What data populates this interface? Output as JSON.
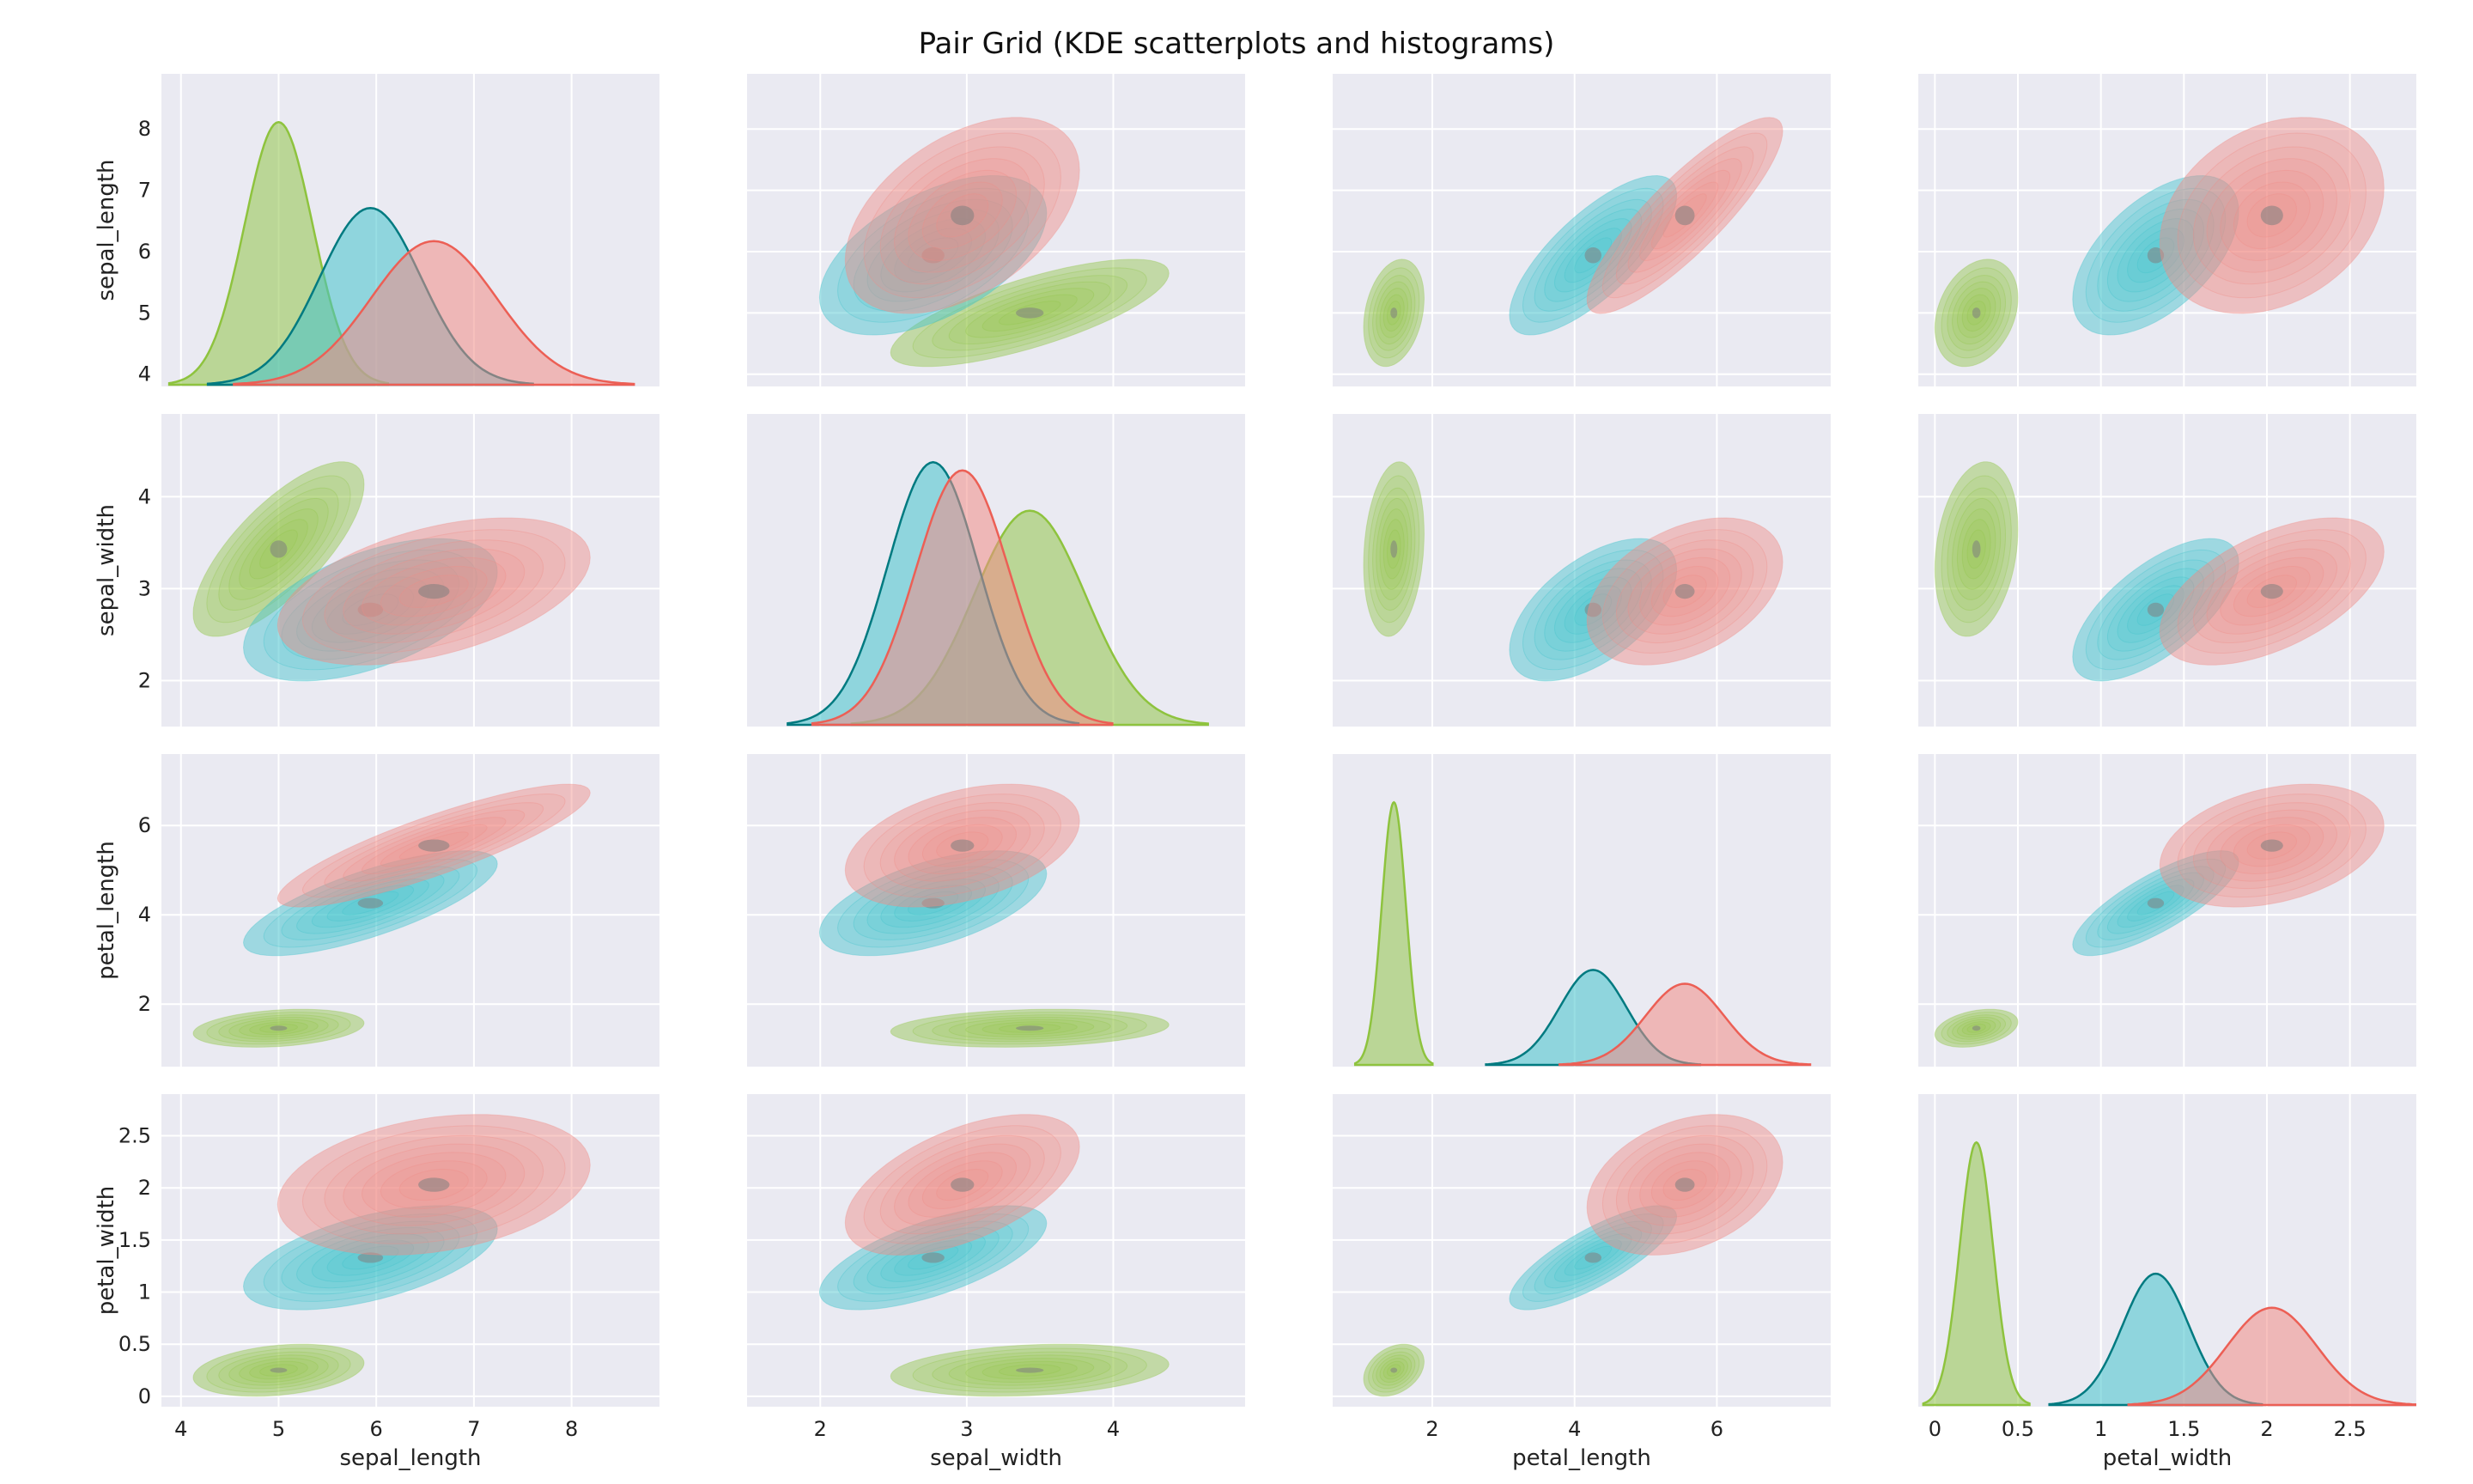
{
  "chart_data": {
    "type": "pair-grid-kde",
    "title": "Pair Grid (KDE scatterplots and histograms)",
    "variables": [
      "sepal_length",
      "sepal_width",
      "petal_length",
      "petal_width"
    ],
    "axis_labels": {
      "x": [
        "sepal_length",
        "sepal_width",
        "petal_length",
        "petal_width"
      ],
      "y": [
        "sepal_length",
        "sepal_width",
        "petal_length",
        "petal_width"
      ]
    },
    "ranges": {
      "sepal_length": [
        3.8,
        8.9
      ],
      "sepal_width": [
        1.5,
        4.9
      ],
      "petal_length": [
        0.6,
        7.6
      ],
      "petal_width": [
        -0.1,
        2.9
      ]
    },
    "ticks": {
      "sepal_length": {
        "x": [
          4,
          5,
          6,
          7,
          8
        ],
        "y": [
          4,
          5,
          6,
          7,
          8
        ]
      },
      "sepal_width": {
        "x": [
          2,
          3,
          4
        ],
        "y": [
          2,
          3,
          4
        ]
      },
      "petal_length": {
        "x": [
          2,
          4,
          6
        ],
        "y": [
          2,
          4,
          6
        ]
      },
      "petal_width": {
        "x": [
          0.0,
          0.5,
          1.0,
          1.5,
          2.0,
          2.5
        ],
        "y": [
          0.0,
          0.5,
          1.0,
          1.5,
          2.0,
          2.5
        ]
      }
    },
    "groups": [
      {
        "id": "g1",
        "fill": "#92c54a",
        "diag_stroke": "#8ec33e",
        "mean": [
          5.0,
          3.43,
          1.46,
          0.25
        ],
        "sd": [
          0.35,
          0.38,
          0.17,
          0.1
        ],
        "corr": {
          "0-1": 0.74,
          "0-2": 0.27,
          "0-3": 0.28,
          "1-2": 0.18,
          "1-3": 0.23,
          "2-3": 0.33
        }
      },
      {
        "id": "g2",
        "fill": "#43c3cc",
        "diag_stroke": "#007a80",
        "mean": [
          5.94,
          2.77,
          4.26,
          1.33
        ],
        "sd": [
          0.52,
          0.31,
          0.47,
          0.2
        ],
        "corr": {
          "0-1": 0.53,
          "0-2": 0.75,
          "0-3": 0.55,
          "1-2": 0.56,
          "1-3": 0.66,
          "2-3": 0.79
        }
      },
      {
        "id": "g3",
        "fill": "#f08c86",
        "diag_stroke": "#ec5f55",
        "mean": [
          6.59,
          2.97,
          5.55,
          2.03
        ],
        "sd": [
          0.64,
          0.32,
          0.55,
          0.27
        ],
        "corr": {
          "0-1": 0.46,
          "0-2": 0.86,
          "0-3": 0.28,
          "1-2": 0.4,
          "1-3": 0.54,
          "2-3": 0.32
        }
      }
    ],
    "grid": true,
    "legend": false
  }
}
